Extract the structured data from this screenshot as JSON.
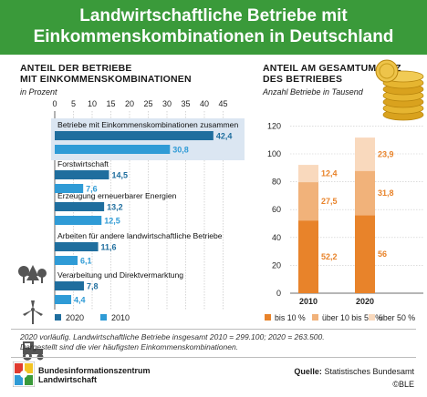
{
  "header": {
    "line1": "Landwirtschaftliche Betriebe mit",
    "line2": "Einkommenskombinationen in Deutschland"
  },
  "left": {
    "title1": "ANTEIL DER BETRIEBE",
    "title2": "MIT EINKOMMENSKOMBINATIONEN",
    "unit": "in Prozent"
  },
  "right": {
    "title1": "ANTEIL AM GESAMTUMSATZ",
    "title2": "DES BETRIEBES",
    "unit": "Anzahl Betriebe in Tausend"
  },
  "footnote": {
    "line1": "2020 vorläufig. Landwirtschaftliche Betriebe insgesamt 2010 = 299.100; 2020 = 263.500.",
    "line2": "Dargestellt sind die vier häufigsten Einkommenskombinationen."
  },
  "logo": {
    "line1": "Bundesinformationszentrum",
    "line2": "Landwirtschaft"
  },
  "source": {
    "label": "Quelle:",
    "text": "Statistisches Bundesamt",
    "copyright": "©BLE"
  },
  "chart_data": [
    {
      "type": "bar",
      "orientation": "horizontal",
      "categories": [
        "Betriebe mit Einkommenskombinationen zusammen",
        "Forstwirtschaft",
        "Erzeugung erneuerbarer Energien",
        "Arbeiten für andere landwirtschaftliche Betriebe",
        "Verarbeitung und Direktvermarktung"
      ],
      "series": [
        {
          "name": "2020",
          "values": [
            42.4,
            14.5,
            13.2,
            11.6,
            7.8
          ],
          "labels": [
            "42,4",
            "14,5",
            "13,2",
            "11,6",
            "7,8"
          ],
          "color": "#1f6e9e"
        },
        {
          "name": "2010",
          "values": [
            30.8,
            7.6,
            12.5,
            6.1,
            4.4
          ],
          "labels": [
            "30,8",
            "7,6",
            "12,5",
            "6,1",
            "4,4"
          ],
          "color": "#2f9bd6"
        }
      ],
      "xlim": [
        0,
        45
      ],
      "ticks": [
        "0",
        "5",
        "10",
        "15",
        "20",
        "25",
        "30",
        "35",
        "40",
        "45"
      ],
      "legend": "bottom"
    },
    {
      "type": "bar",
      "stacked": true,
      "categories": [
        "2010",
        "2020"
      ],
      "series": [
        {
          "name": "bis 10 %",
          "values": [
            52.2,
            56
          ],
          "labels": [
            "52,2",
            "56"
          ],
          "color": "#e8832a"
        },
        {
          "name": "über 10 bis 50 %",
          "values": [
            27.5,
            31.8
          ],
          "labels": [
            "27,5",
            "31,8"
          ],
          "color": "#f1b27a"
        },
        {
          "name": "über 50 %",
          "values": [
            12.4,
            23.9
          ],
          "labels": [
            "12,4",
            "23,9"
          ],
          "color": "#f9d9bd"
        }
      ],
      "ylim": [
        0,
        120
      ],
      "ticks": [
        "0",
        "20",
        "40",
        "60",
        "80",
        "100",
        "120"
      ],
      "grid": true,
      "legend": "bottom"
    }
  ]
}
